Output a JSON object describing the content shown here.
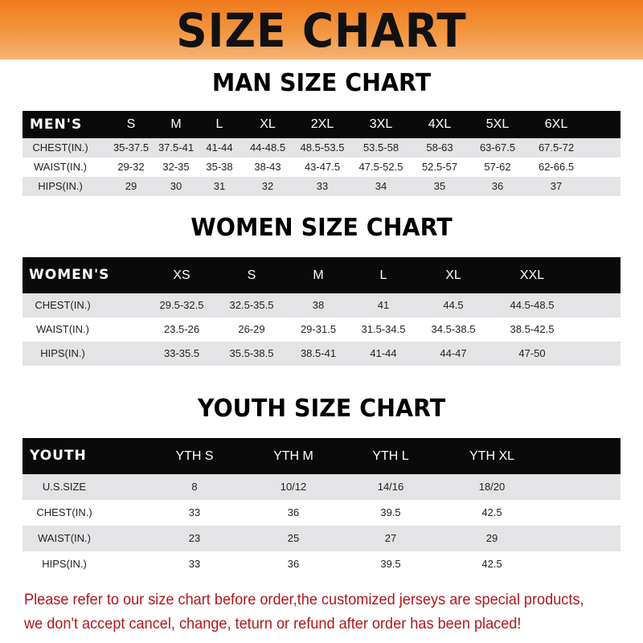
{
  "banner": {
    "title": "SIZE CHART",
    "color": "#f07a1c"
  },
  "men": {
    "title": "MAN SIZE CHART",
    "header": [
      "MEN'S",
      "S",
      "M",
      "L",
      "XL",
      "2XL",
      "3XL",
      "4XL",
      "5XL",
      "6XL"
    ],
    "rows": [
      [
        "CHEST(IN.)",
        "35-37.5",
        "37.5-41",
        "41-44",
        "44-48.5",
        "48.5-53.5",
        "53.5-58",
        "58-63",
        "63-67.5",
        "67.5-72"
      ],
      [
        "WAIST(IN.)",
        "29-32",
        "32-35",
        "35-38",
        "38-43",
        "43-47.5",
        "47.5-52.5",
        "52.5-57",
        "57-62",
        "62-66.5"
      ],
      [
        "HIPS(IN.)",
        "29",
        "30",
        "31",
        "32",
        "33",
        "34",
        "35",
        "36",
        "37"
      ]
    ]
  },
  "women": {
    "title": "WOMEN SIZE CHART",
    "header": [
      "WOMEN'S",
      "XS",
      "S",
      "M",
      "L",
      "XL",
      "XXL"
    ],
    "rows": [
      [
        "CHEST(IN.)",
        "29.5-32.5",
        "32.5-35.5",
        "38",
        "41",
        "44.5",
        "44.5-48.5"
      ],
      [
        "WAIST(IN.)",
        "23.5-26",
        "26-29",
        "29-31.5",
        "31.5-34.5",
        "34.5-38.5",
        "38.5-42.5"
      ],
      [
        "HIPS(IN.)",
        "33-35.5",
        "35.5-38.5",
        "38.5-41",
        "41-44",
        "44-47",
        "47-50"
      ]
    ]
  },
  "youth": {
    "title": "YOUTH SIZE CHART",
    "header": [
      "YOUTH",
      "YTH S",
      "YTH M",
      "YTH L",
      "YTH XL"
    ],
    "rows": [
      [
        "U.S.SIZE",
        "8",
        "10/12",
        "14/16",
        "18/20"
      ],
      [
        "CHEST(IN.)",
        "33",
        "36",
        "39.5",
        "42.5"
      ],
      [
        "WAIST(IN.)",
        "23",
        "25",
        "27",
        "29"
      ],
      [
        "HIPS(IN.)",
        "33",
        "36",
        "39.5",
        "42.5"
      ]
    ]
  },
  "notice": {
    "line1": "Please refer to our size chart before order,the customized jerseys are special products,",
    "line2": "we don't accept cancel, change, teturn or refund after order has been placed!",
    "color": "#b3161b"
  }
}
